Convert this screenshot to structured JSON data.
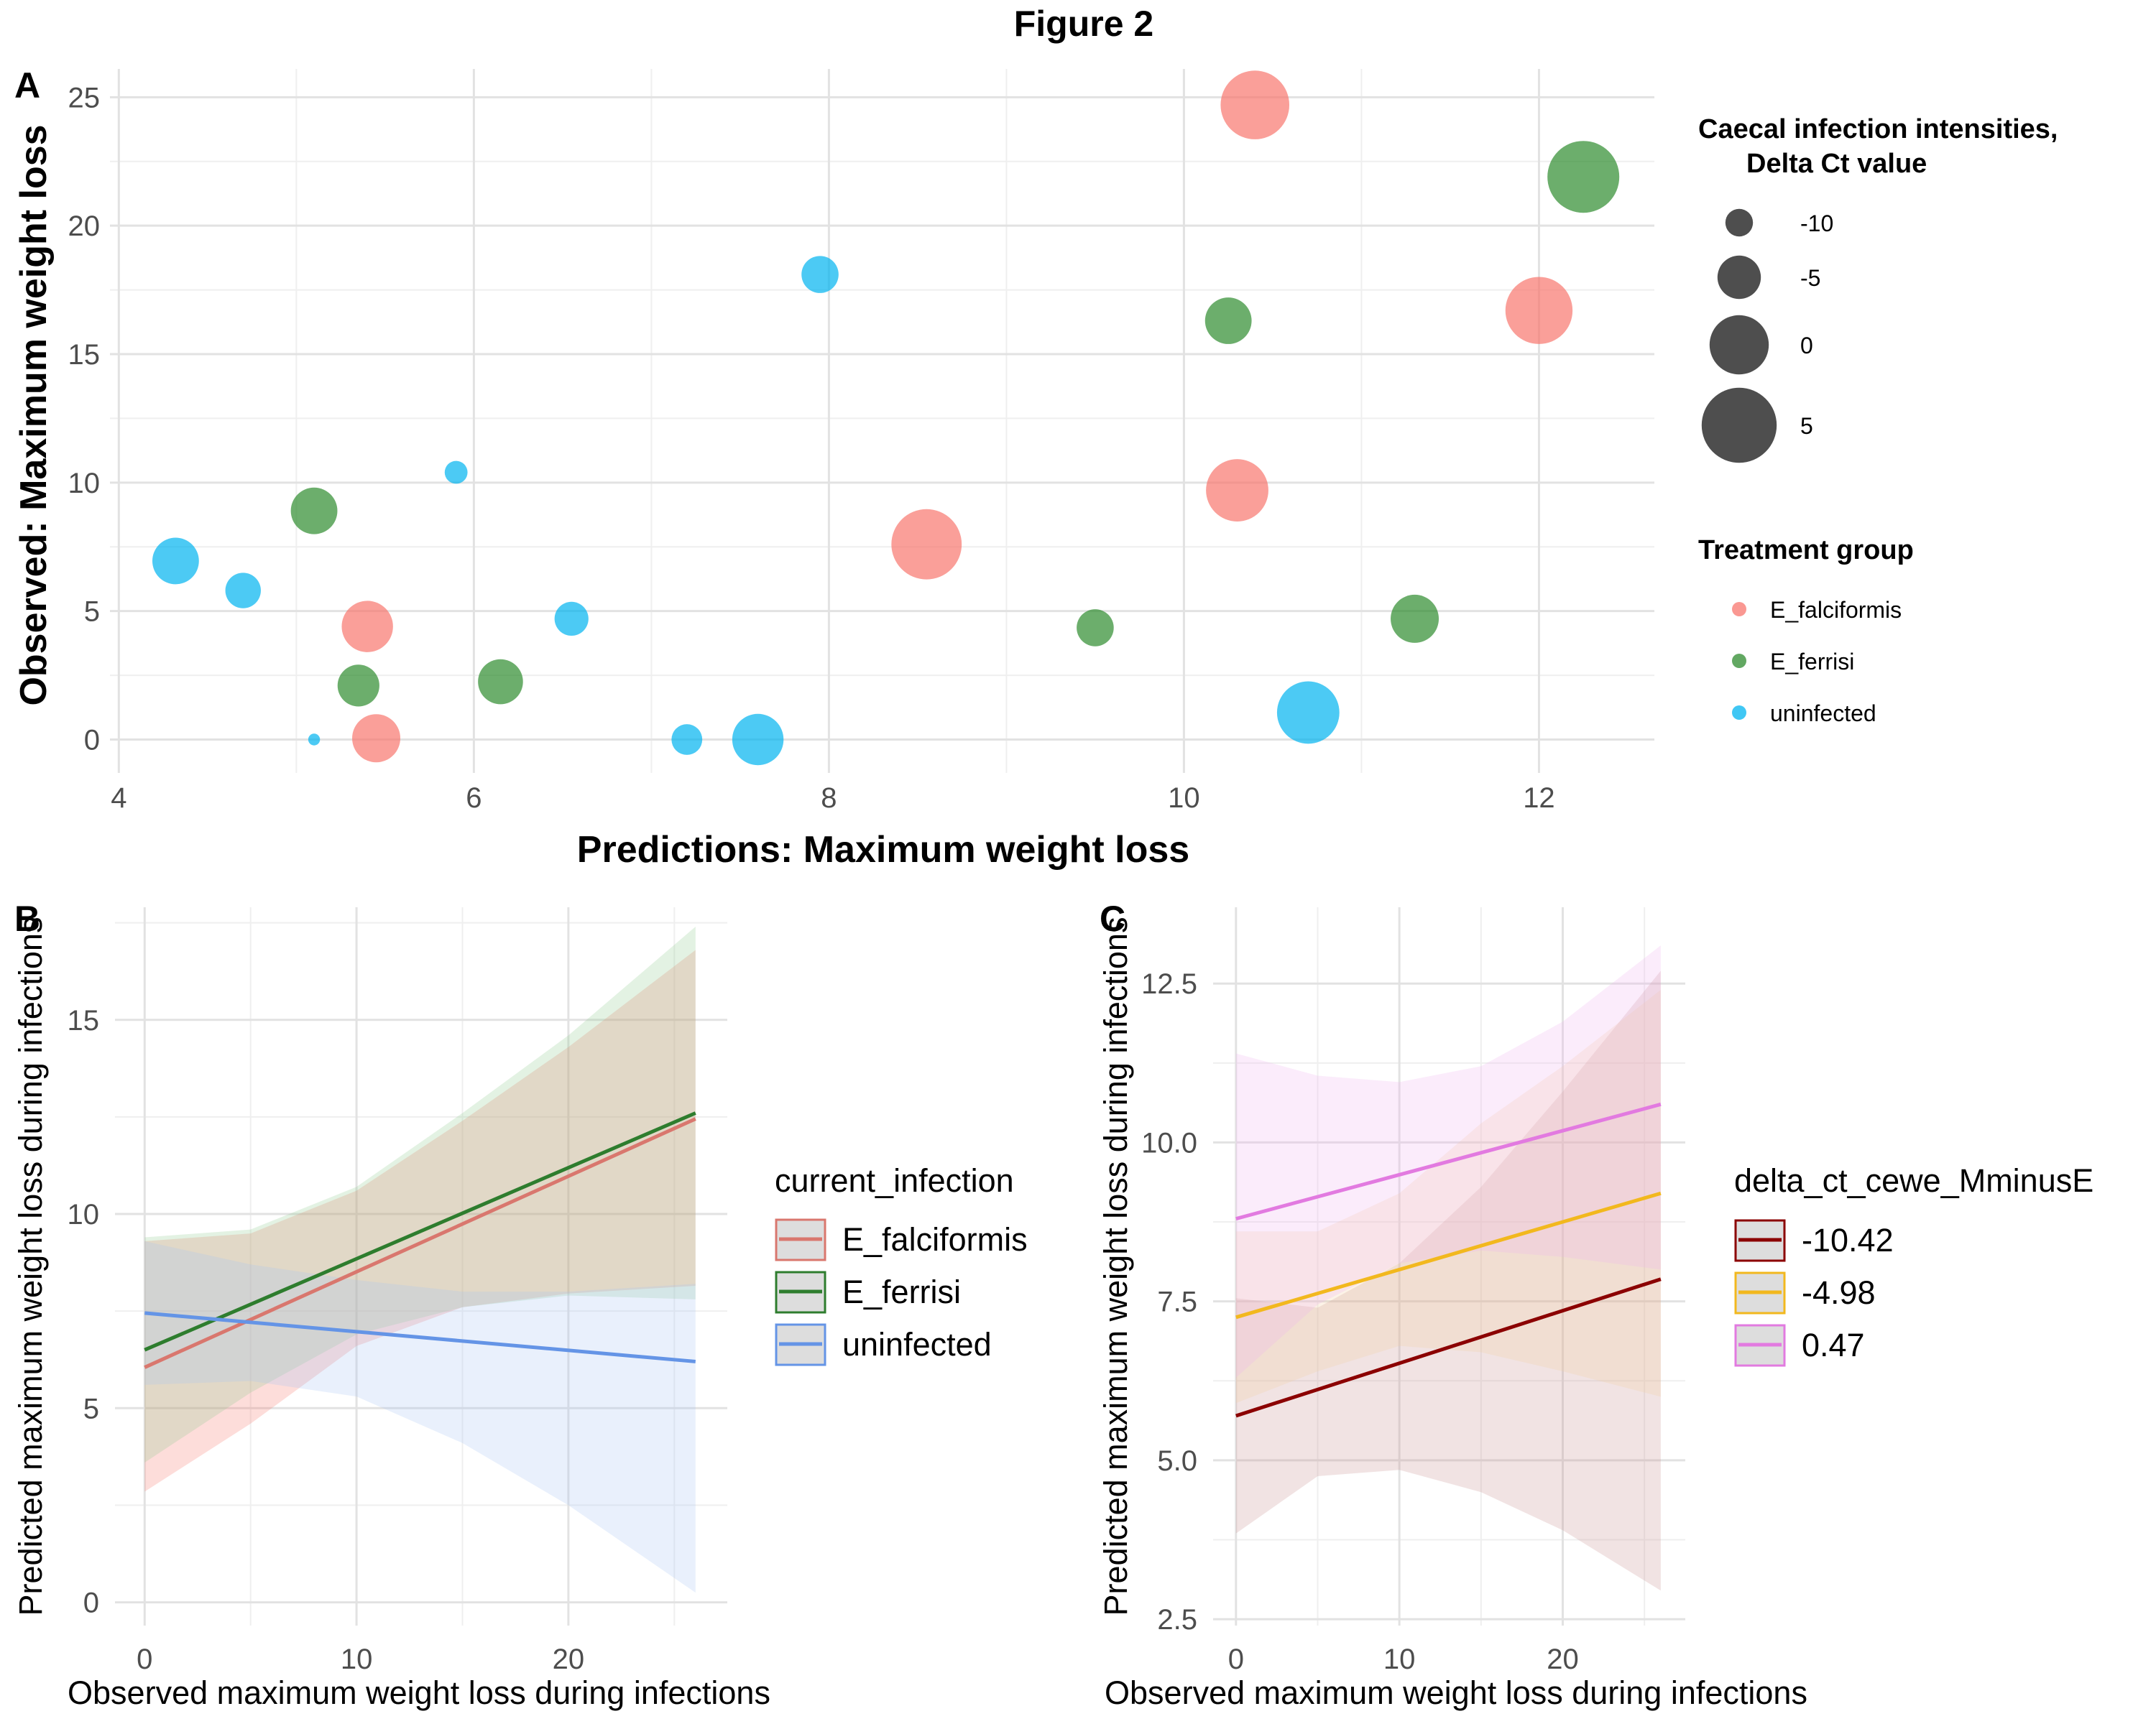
{
  "figure_title": "Figure 2",
  "chart_data": [
    {
      "panel": "A",
      "type": "scatter",
      "xlabel": "Predictions: Maximum weight loss",
      "ylabel": "Observed: Maximum weight loss",
      "xlim": [
        3.95,
        12.65
      ],
      "ylim": [
        -1.3,
        26.1
      ],
      "xticks": [
        4,
        6,
        8,
        10,
        12
      ],
      "yticks": [
        0,
        5,
        10,
        15,
        20,
        25
      ],
      "grid": true,
      "size_legend": {
        "title": [
          "Caecal infection intensities,",
          "Delta Ct value"
        ],
        "entries": [
          {
            "label": "-10",
            "value": -10
          },
          {
            "label": "-5",
            "value": -5
          },
          {
            "label": "0",
            "value": 0
          },
          {
            "label": "5",
            "value": 5
          }
        ]
      },
      "color_legend": {
        "title": "Treatment group",
        "entries": [
          {
            "label": "E_falciformis",
            "color": "#F8766D"
          },
          {
            "label": "E_ferrisi",
            "color": "#2E8B2E"
          },
          {
            "label": "uninfected",
            "color": "#00B4F0"
          }
        ]
      },
      "points": [
        {
          "x": 10.4,
          "y": 24.7,
          "delta_ct": 3.0,
          "group": "E_falciformis"
        },
        {
          "x": 12.0,
          "y": 16.7,
          "delta_ct": 2.5,
          "group": "E_falciformis"
        },
        {
          "x": 10.3,
          "y": 9.7,
          "delta_ct": 1.0,
          "group": "E_falciformis"
        },
        {
          "x": 8.55,
          "y": 7.6,
          "delta_ct": 3.5,
          "group": "E_falciformis"
        },
        {
          "x": 5.4,
          "y": 4.4,
          "delta_ct": -2.5,
          "group": "E_falciformis"
        },
        {
          "x": 5.45,
          "y": 0.05,
          "delta_ct": -3.5,
          "group": "E_falciformis"
        },
        {
          "x": 12.25,
          "y": 21.9,
          "delta_ct": 4.0,
          "group": "E_ferrisi"
        },
        {
          "x": 10.25,
          "y": 16.3,
          "delta_ct": -4.0,
          "group": "E_ferrisi"
        },
        {
          "x": 5.1,
          "y": 8.9,
          "delta_ct": -4.0,
          "group": "E_ferrisi"
        },
        {
          "x": 5.35,
          "y": 2.1,
          "delta_ct": -5.5,
          "group": "E_ferrisi"
        },
        {
          "x": 6.15,
          "y": 2.25,
          "delta_ct": -4.5,
          "group": "E_ferrisi"
        },
        {
          "x": 9.5,
          "y": 4.35,
          "delta_ct": -7.0,
          "group": "E_ferrisi"
        },
        {
          "x": 11.3,
          "y": 4.7,
          "delta_ct": -3.5,
          "group": "E_ferrisi"
        },
        {
          "x": 7.95,
          "y": 18.1,
          "delta_ct": -7.0,
          "group": "uninfected"
        },
        {
          "x": 5.9,
          "y": 10.4,
          "delta_ct": -11.5,
          "group": "uninfected"
        },
        {
          "x": 4.32,
          "y": 6.95,
          "delta_ct": -4.0,
          "group": "uninfected"
        },
        {
          "x": 4.7,
          "y": 5.8,
          "delta_ct": -7.5,
          "group": "uninfected"
        },
        {
          "x": 6.55,
          "y": 4.7,
          "delta_ct": -8.0,
          "group": "uninfected"
        },
        {
          "x": 5.1,
          "y": 0.0,
          "delta_ct": -15.0,
          "group": "uninfected"
        },
        {
          "x": 7.2,
          "y": 0.0,
          "delta_ct": -9.0,
          "group": "uninfected"
        },
        {
          "x": 7.6,
          "y": 0.0,
          "delta_ct": -2.5,
          "group": "uninfected"
        },
        {
          "x": 10.7,
          "y": 1.05,
          "delta_ct": 1.0,
          "group": "uninfected"
        }
      ]
    },
    {
      "panel": "B",
      "type": "line",
      "xlabel": "Observed maximum weight loss during infections",
      "ylabel": "Predicted maximum weight loss during infections",
      "xlim": [
        -1.4,
        27.5
      ],
      "ylim": [
        -0.6,
        17.9
      ],
      "xticks": [
        0,
        10,
        20
      ],
      "yticks": [
        0,
        5,
        10,
        15
      ],
      "grid": true,
      "legend": {
        "title": "current_infection",
        "placement": "right"
      },
      "series": [
        {
          "name": "E_falciformis",
          "color": "#D9776E",
          "fill": "#F8766D",
          "x": [
            0,
            26
          ],
          "y": [
            6.05,
            12.45
          ],
          "band_x": [
            0,
            5,
            10,
            15,
            20,
            26
          ],
          "band_lo": [
            2.85,
            4.6,
            6.6,
            7.6,
            7.95,
            8.15
          ],
          "band_hi": [
            9.3,
            9.5,
            10.6,
            12.4,
            14.3,
            16.8
          ]
        },
        {
          "name": "E_ferrisi",
          "color": "#2E7D2E",
          "fill": "#8FCC8F",
          "x": [
            0,
            26
          ],
          "y": [
            6.5,
            12.6
          ],
          "band_x": [
            0,
            5,
            10,
            15,
            20,
            26
          ],
          "band_lo": [
            3.6,
            5.4,
            6.9,
            7.6,
            7.9,
            7.8
          ],
          "band_hi": [
            9.4,
            9.6,
            10.7,
            12.6,
            14.6,
            17.4
          ]
        },
        {
          "name": "uninfected",
          "color": "#6494E6",
          "fill": "#A9C3F5",
          "x": [
            0,
            26
          ],
          "y": [
            7.45,
            6.2
          ],
          "band_x": [
            0,
            5,
            10,
            15,
            20,
            26
          ],
          "band_lo": [
            5.6,
            5.7,
            5.3,
            4.1,
            2.5,
            0.25
          ],
          "band_hi": [
            9.3,
            8.7,
            8.3,
            8.0,
            8.0,
            8.2
          ]
        }
      ]
    },
    {
      "panel": "C",
      "type": "line",
      "xlabel": "Observed maximum weight loss during infections",
      "ylabel": "Predicted maximum weight loss during infections",
      "xlim": [
        -1.4,
        27.5
      ],
      "ylim": [
        2.4,
        13.7
      ],
      "xticks": [
        0,
        10,
        20
      ],
      "yticks": [
        2.5,
        5.0,
        7.5,
        10.0,
        12.5
      ],
      "ytick_labels": [
        "2.5",
        "5.0",
        "7.5",
        "10.0",
        "12.5"
      ],
      "grid": true,
      "legend": {
        "title": "delta_ct_cewe_MminusE",
        "placement": "right"
      },
      "series": [
        {
          "name": "-10.42",
          "color": "#8B0000",
          "fill": "#C99090",
          "x": [
            0,
            26
          ],
          "y": [
            5.7,
            7.85
          ],
          "band_x": [
            0,
            5,
            10,
            15,
            20,
            26
          ],
          "band_lo": [
            3.85,
            4.75,
            4.85,
            4.5,
            3.9,
            2.95
          ],
          "band_hi": [
            7.55,
            7.4,
            8.1,
            9.3,
            10.8,
            12.7
          ]
        },
        {
          "name": "-4.98",
          "color": "#F2B81E",
          "fill": "#F5CFA0",
          "x": [
            0,
            26
          ],
          "y": [
            7.25,
            9.2
          ],
          "band_x": [
            0,
            5,
            10,
            15,
            20,
            26
          ],
          "band_lo": [
            5.9,
            6.4,
            6.8,
            6.7,
            6.4,
            6.0
          ],
          "band_hi": [
            8.6,
            8.6,
            9.2,
            10.3,
            11.2,
            12.4
          ]
        },
        {
          "name": "0.47",
          "color": "#E27AE0",
          "fill": "#F0B5F0",
          "x": [
            0,
            26
          ],
          "y": [
            8.8,
            10.6
          ],
          "band_x": [
            0,
            5,
            10,
            15,
            20,
            26
          ],
          "band_lo": [
            6.3,
            7.45,
            8.1,
            8.3,
            8.2,
            8.0
          ],
          "band_hi": [
            11.4,
            11.05,
            10.95,
            11.2,
            11.9,
            13.1
          ]
        }
      ]
    }
  ]
}
